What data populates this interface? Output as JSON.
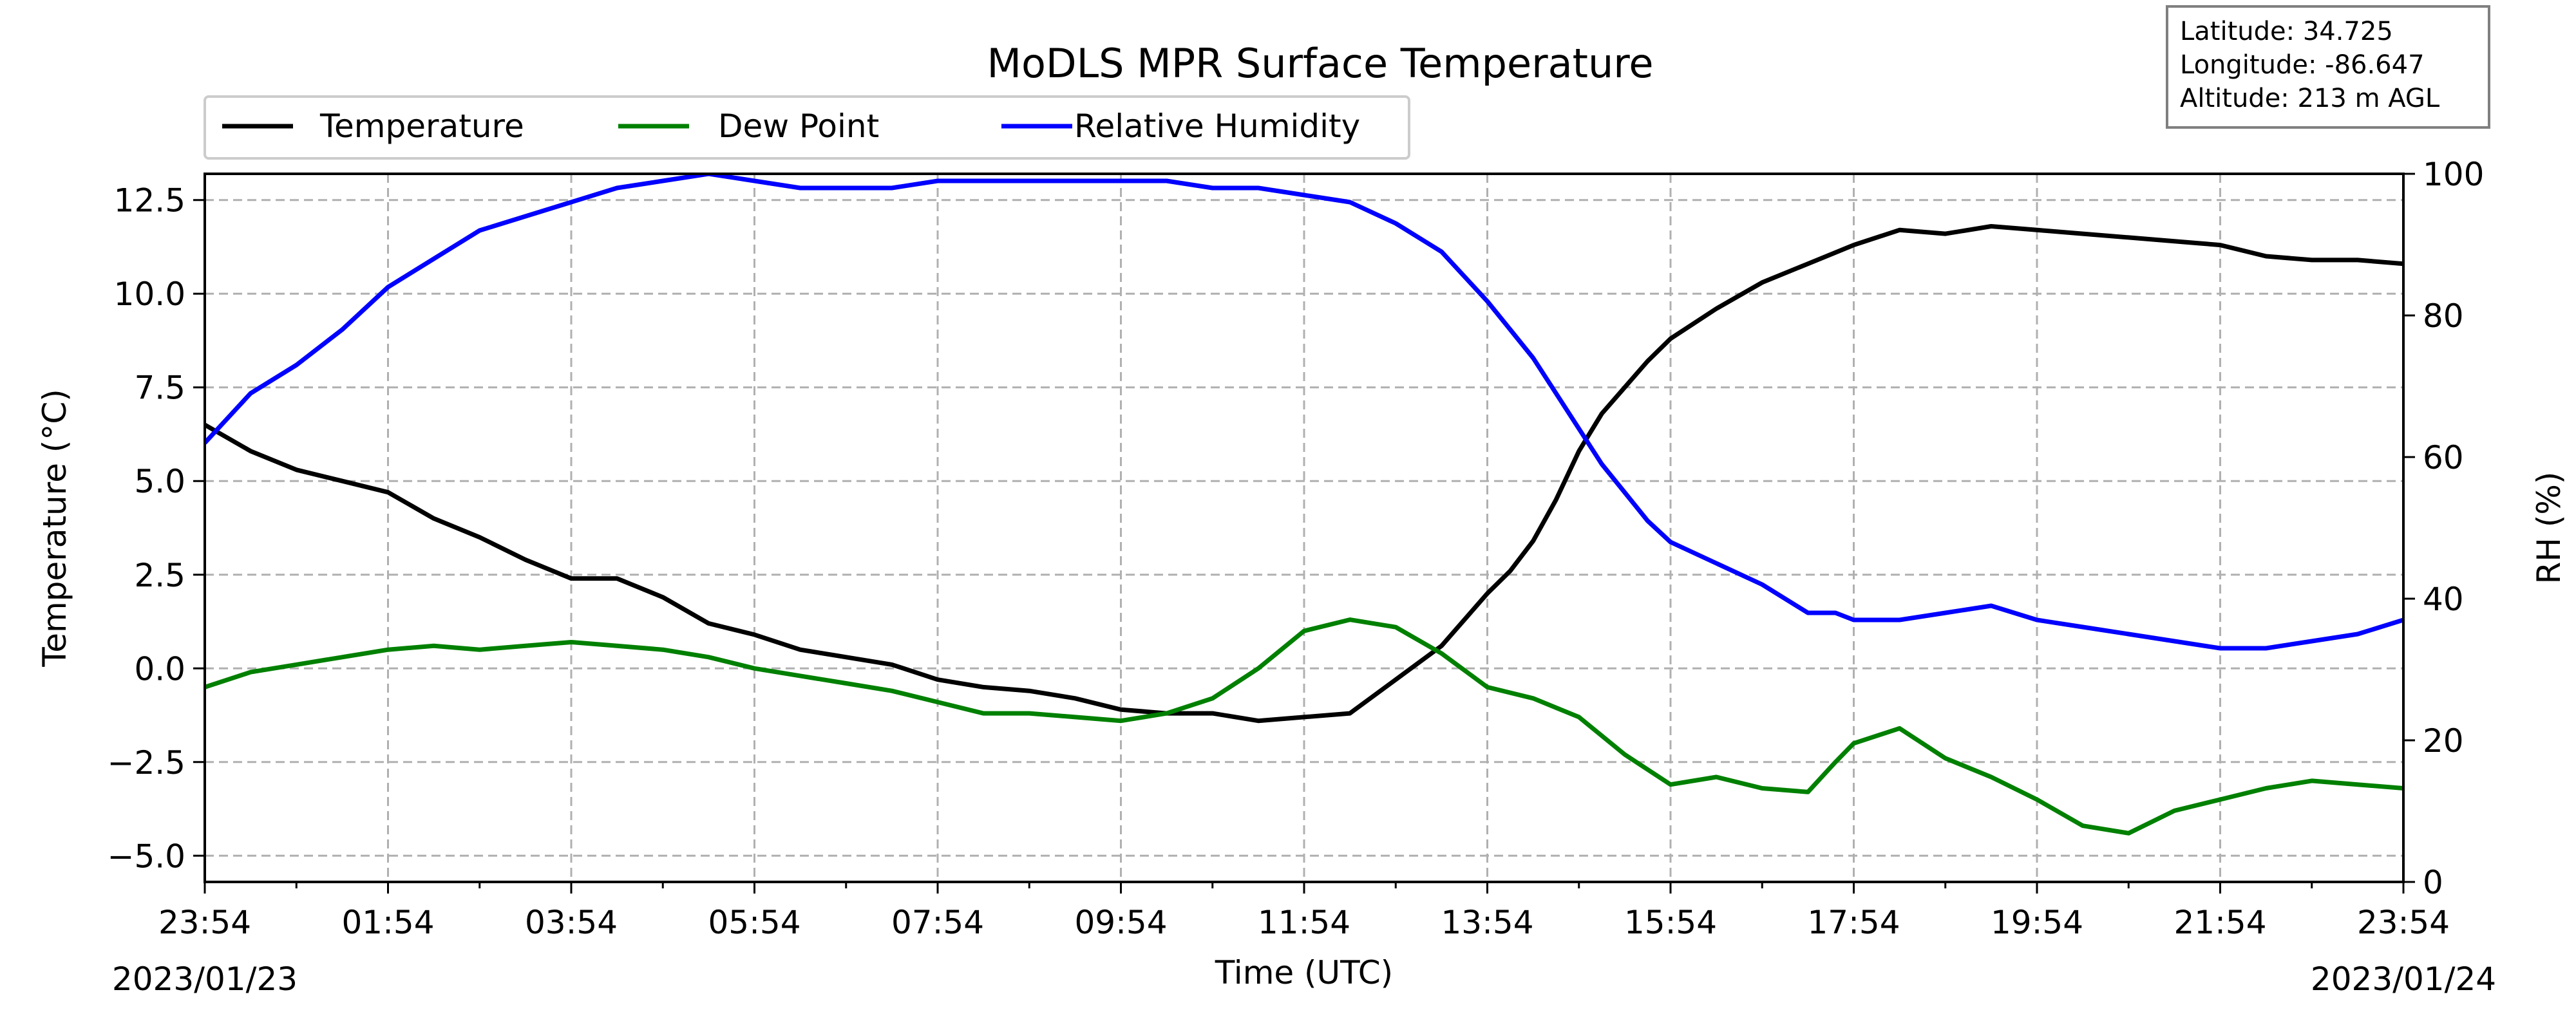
{
  "chart_data": {
    "type": "line",
    "title": "MoDLS MPR Surface Temperature",
    "xlabel": "Time (UTC)",
    "ylabel_left": "Temperature (°C)",
    "ylabel_right": "RH (%)",
    "x_tick_labels": [
      "23:54",
      "01:54",
      "03:54",
      "05:54",
      "07:54",
      "09:54",
      "11:54",
      "13:54",
      "15:54",
      "17:54",
      "19:54",
      "21:54",
      "23:54"
    ],
    "start_date": "2023/01/23",
    "end_date": "2023/01/24",
    "x_range_hours_since_2023-01-23T23:54Z": [
      0,
      24
    ],
    "ylim_left": [
      -5.7,
      13.2
    ],
    "ylim_right": [
      0,
      100
    ],
    "y_ticks_left": [
      12.5,
      10.0,
      7.5,
      5.0,
      2.5,
      0.0,
      -2.5,
      -5.0
    ],
    "y_tick_labels_left": [
      "12.5",
      "10.0",
      "7.5",
      "5.0",
      "2.5",
      "0.0",
      "−2.5",
      "−5.0"
    ],
    "y_ticks_right": [
      100,
      80,
      60,
      40,
      20,
      0
    ],
    "y_tick_labels_right": [
      "100",
      "80",
      "60",
      "40",
      "20",
      "0"
    ],
    "grid": true,
    "legend_placement": "top-left, above plot",
    "info_box": {
      "latitude": "Latitude: 34.725",
      "longitude": "Longitude: -86.647",
      "altitude": "Altitude: 213 m AGL"
    },
    "series": [
      {
        "name": "Temperature",
        "axis": "left",
        "color": "#000000",
        "x": [
          0,
          0.5,
          1,
          1.5,
          2,
          2.5,
          3,
          3.5,
          4,
          4.5,
          5,
          5.5,
          6,
          6.5,
          7,
          7.5,
          8,
          8.5,
          9,
          9.5,
          10,
          10.5,
          11,
          11.5,
          12,
          12.5,
          13,
          13.5,
          14,
          14.25,
          14.5,
          14.75,
          15,
          15.25,
          15.5,
          15.75,
          16,
          16.5,
          17,
          17.5,
          18,
          18.5,
          19,
          19.5,
          20,
          20.5,
          21,
          21.5,
          22,
          22.5,
          23,
          23.5,
          24
        ],
        "values": [
          6.5,
          5.8,
          5.3,
          5.0,
          4.7,
          4.0,
          3.5,
          2.9,
          2.4,
          2.4,
          1.9,
          1.2,
          0.9,
          0.5,
          0.3,
          0.1,
          -0.3,
          -0.5,
          -0.6,
          -0.8,
          -1.1,
          -1.2,
          -1.2,
          -1.4,
          -1.3,
          -1.2,
          -0.3,
          0.6,
          2.0,
          2.6,
          3.4,
          4.5,
          5.8,
          6.8,
          7.5,
          8.2,
          8.8,
          9.6,
          10.3,
          10.8,
          11.3,
          11.7,
          11.6,
          11.8,
          11.7,
          11.6,
          11.5,
          11.4,
          11.3,
          11.0,
          10.9,
          10.9,
          10.8
        ]
      },
      {
        "name": "Dew Point",
        "axis": "left",
        "color": "#008000",
        "x": [
          0,
          0.5,
          1,
          1.5,
          2,
          2.5,
          3,
          3.5,
          4,
          4.5,
          5,
          5.5,
          6,
          6.5,
          7,
          7.5,
          8,
          8.5,
          9,
          9.5,
          10,
          10.5,
          11,
          11.5,
          12,
          12.5,
          13,
          13.5,
          14,
          14.5,
          15,
          15.5,
          16,
          16.5,
          17,
          17.5,
          17.8,
          18,
          18.5,
          19,
          19.5,
          20,
          20.5,
          21,
          21.5,
          22,
          22.5,
          23,
          23.5,
          24
        ],
        "values": [
          -0.5,
          -0.1,
          0.1,
          0.3,
          0.5,
          0.6,
          0.5,
          0.6,
          0.7,
          0.6,
          0.5,
          0.3,
          0.0,
          -0.2,
          -0.4,
          -0.6,
          -0.9,
          -1.2,
          -1.2,
          -1.3,
          -1.4,
          -1.2,
          -0.8,
          0.0,
          1.0,
          1.3,
          1.1,
          0.4,
          -0.5,
          -0.8,
          -1.3,
          -2.3,
          -3.1,
          -2.9,
          -3.2,
          -3.3,
          -2.5,
          -2.0,
          -1.6,
          -2.4,
          -2.9,
          -3.5,
          -4.2,
          -4.4,
          -3.8,
          -3.5,
          -3.2,
          -3.0,
          -3.1,
          -3.2
        ]
      },
      {
        "name": "Relative Humidity",
        "axis": "right",
        "color": "#0000ff",
        "x": [
          0,
          0.5,
          1,
          1.5,
          2,
          2.5,
          3,
          3.5,
          4,
          4.5,
          5,
          5.5,
          6,
          6.5,
          7,
          7.5,
          8,
          8.5,
          9,
          9.5,
          10,
          10.5,
          11,
          11.5,
          12,
          12.5,
          13,
          13.5,
          14,
          14.25,
          14.5,
          14.75,
          15,
          15.25,
          15.5,
          15.75,
          16,
          16.5,
          17,
          17.5,
          17.8,
          18,
          18.5,
          19,
          19.5,
          20,
          20.5,
          21,
          21.5,
          22,
          22.5,
          23,
          23.5,
          24
        ],
        "values": [
          62,
          69,
          73,
          78,
          84,
          88,
          92,
          94,
          96,
          98,
          99,
          100,
          99,
          98,
          98,
          98,
          99,
          99,
          99,
          99,
          99,
          99,
          98,
          98,
          97,
          96,
          93,
          89,
          82,
          78,
          74,
          69,
          64,
          59,
          55,
          51,
          48,
          45,
          42,
          38,
          38,
          37,
          37,
          38,
          39,
          37,
          36,
          35,
          34,
          33,
          33,
          34,
          35,
          37
        ]
      }
    ]
  }
}
